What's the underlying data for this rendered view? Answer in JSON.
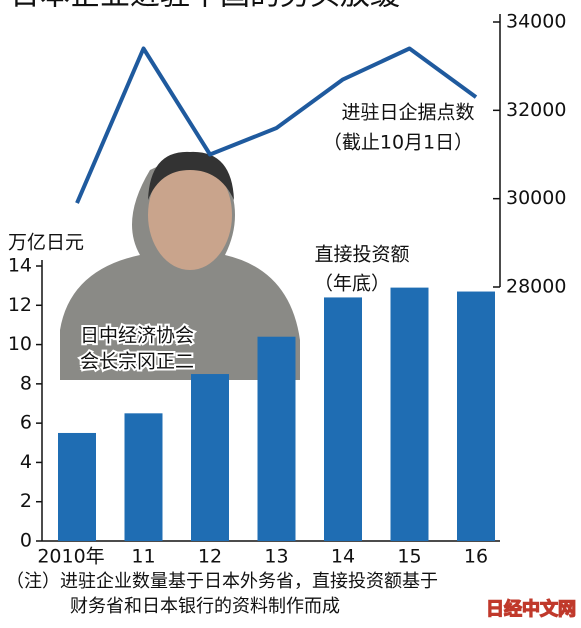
{
  "chart_data": {
    "type": "bar-line",
    "title": "日本企业进驻中国的势头放缓",
    "y_label": "万亿日元",
    "categories": [
      "2010年",
      "11",
      "12",
      "13",
      "14",
      "15",
      "16"
    ],
    "series": [
      {
        "name": "直接投资额",
        "note": "（年底）",
        "type": "bar",
        "color": "#1f6db3",
        "values": [
          5.5,
          6.5,
          8.5,
          10.4,
          12.4,
          12.9,
          12.7
        ]
      },
      {
        "name": "进驻日企据点数",
        "note": "（截止10月1日）",
        "type": "line",
        "axis": "y2",
        "color": "#1f5a9e",
        "values": [
          29900,
          33400,
          31000,
          31600,
          32700,
          33400,
          32300
        ]
      }
    ],
    "ylim": [
      0,
      14
    ],
    "yticks": [
      0,
      2,
      4,
      6,
      8,
      10,
      12,
      14
    ],
    "y2lim": [
      28000,
      34000
    ],
    "y2ticks": [
      28000,
      30000,
      32000,
      34000
    ],
    "photo_caption": [
      "日中经济协会",
      "会长宗冈正二"
    ],
    "footnote": [
      "（注）进驻企业数量基于日本外务省，直接投资额基于",
      "财务省和日本银行的资料制作而成"
    ],
    "watermark": "日经中文网"
  }
}
